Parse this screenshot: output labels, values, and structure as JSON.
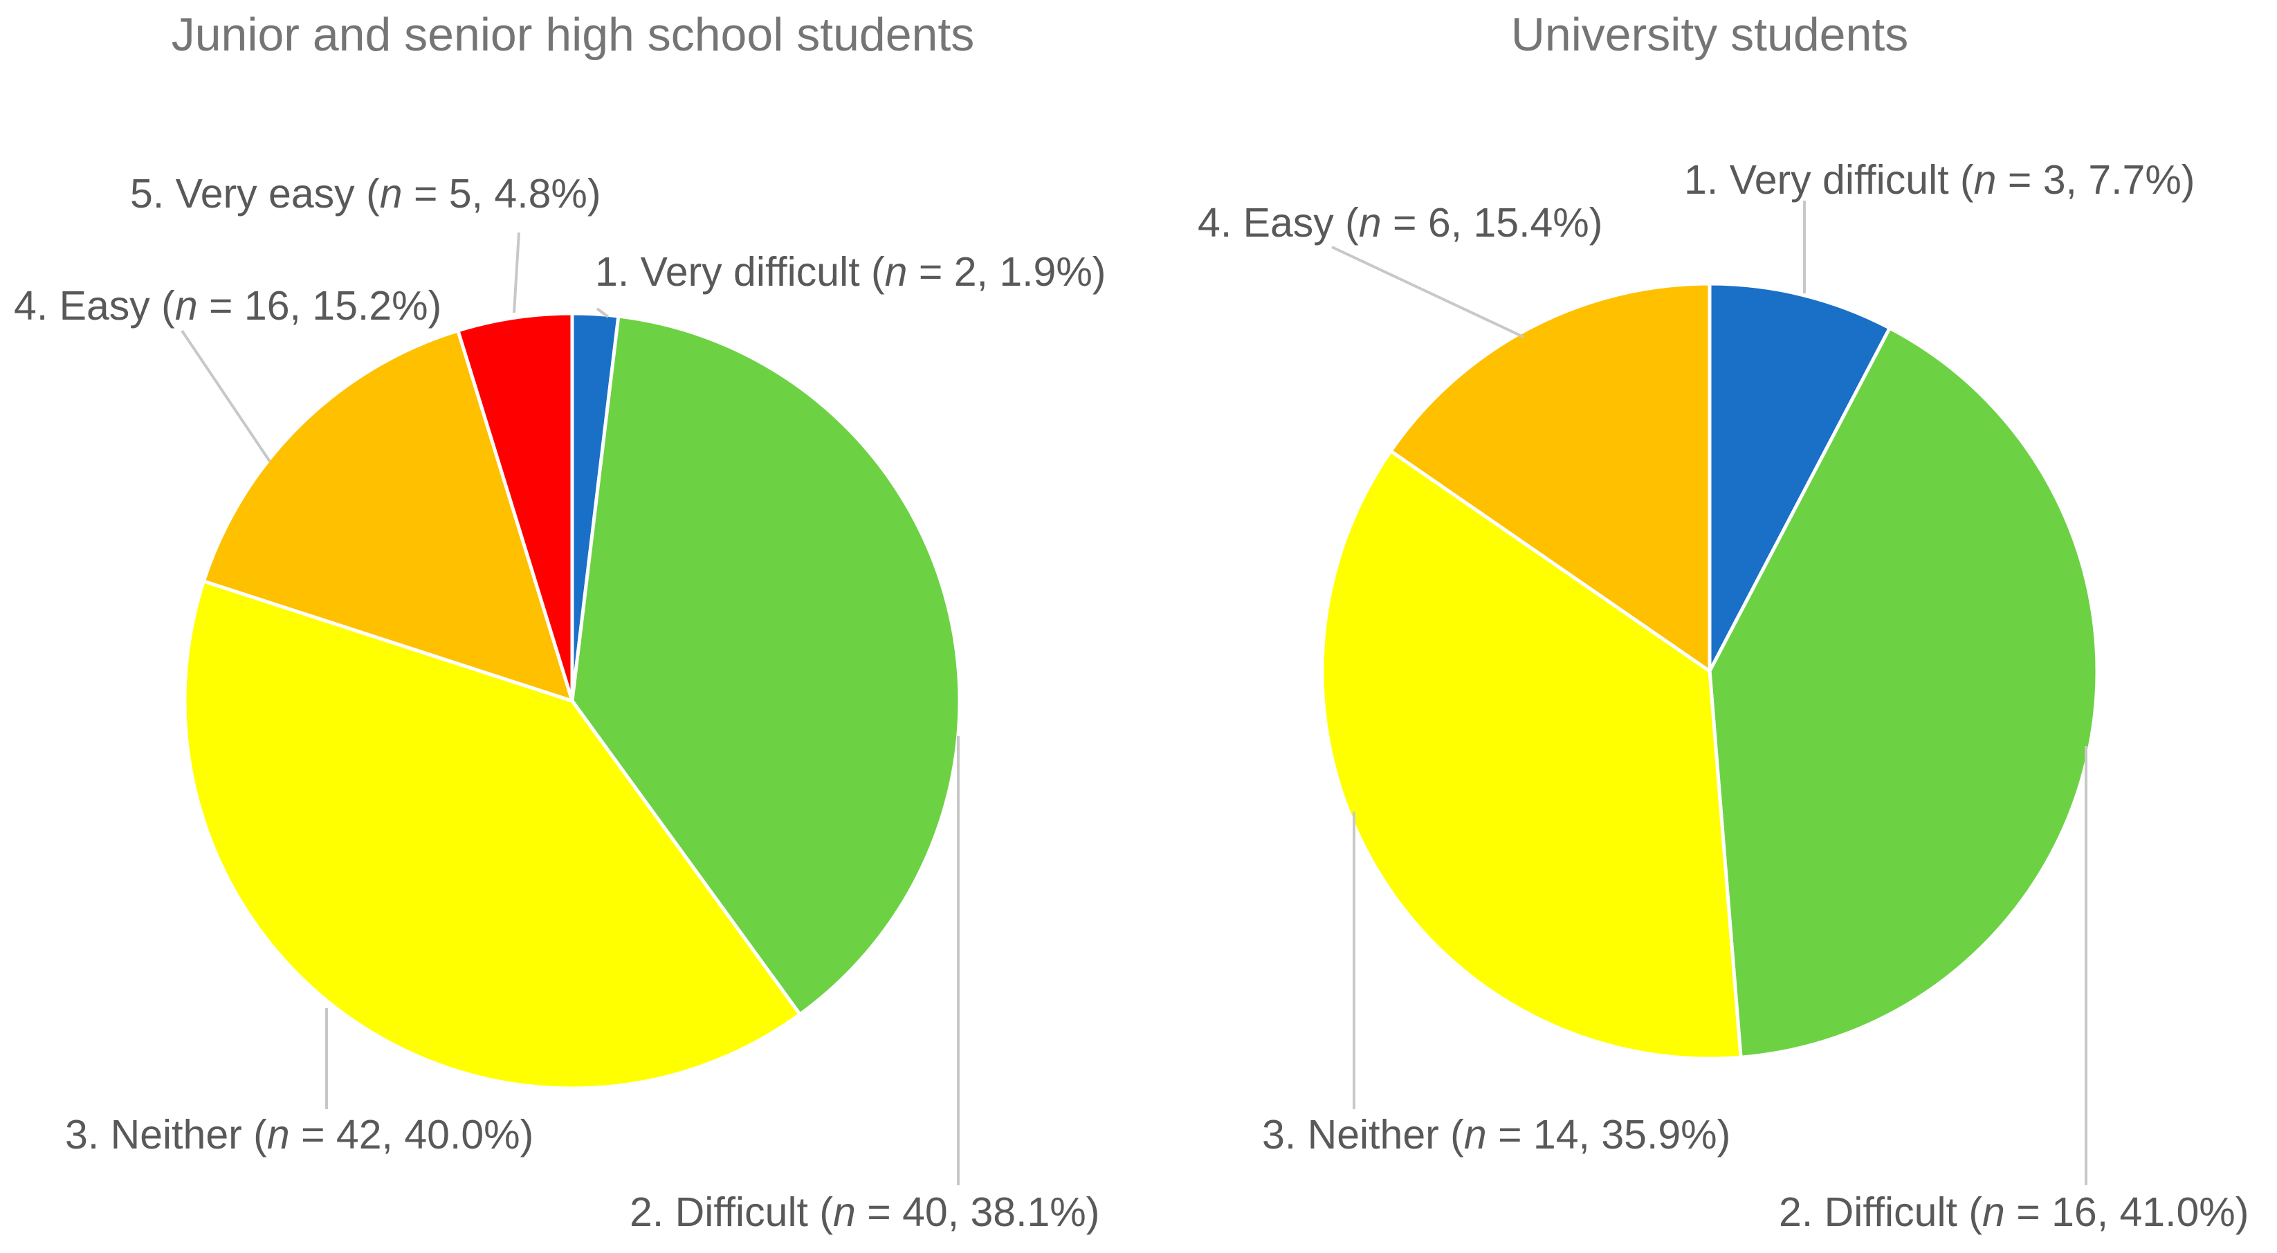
{
  "chart_data": [
    {
      "type": "pie",
      "title": "Junior and senior high school students",
      "categories": [
        "1. Very difficult",
        "2. Difficult",
        "3. Neither",
        "4. Easy",
        "5. Very easy"
      ],
      "values": [
        2,
        40,
        42,
        16,
        5
      ],
      "percentages": [
        "1.9%",
        "38.1%",
        "40.0%",
        "15.2%",
        "4.8%"
      ],
      "colors": [
        "#1a6fc7",
        "#6cd244",
        "#ffff00",
        "#ffc000",
        "#ff0000"
      ]
    },
    {
      "type": "pie",
      "title": "University students",
      "categories": [
        "1. Very difficult",
        "2. Difficult",
        "3. Neither",
        "4. Easy"
      ],
      "values": [
        3,
        16,
        14,
        6
      ],
      "percentages": [
        "7.7%",
        "41.0%",
        "35.9%",
        "15.4%"
      ],
      "colors": [
        "#1a6fc7",
        "#6cd244",
        "#ffff00",
        "#ffc000"
      ]
    }
  ],
  "n_symbol": "n",
  "equals": " = "
}
